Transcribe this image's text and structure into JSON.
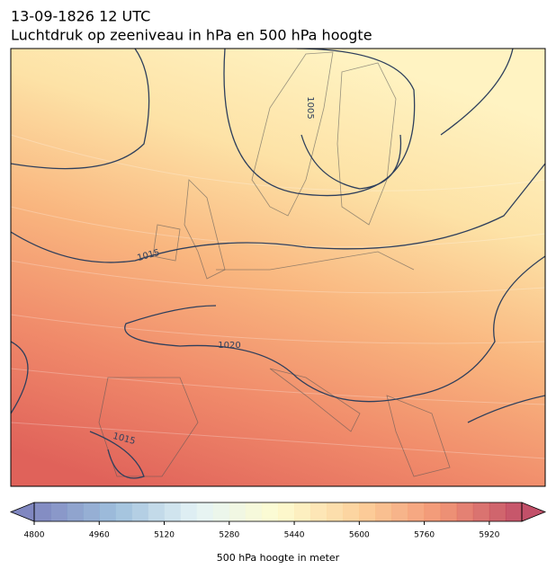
{
  "header": {
    "title_line1": "13-09-1826 12 UTC",
    "title_line2": "Luchtdruk op zeeniveau in hPa en 500 hPa hoogte"
  },
  "map": {
    "isobar_labels": [
      1005,
      1015,
      1020,
      1015
    ]
  },
  "colorbar": {
    "label": "500 hPa hoogte in meter",
    "range": [
      4800,
      6000
    ],
    "step": 40,
    "ticks": [
      4800,
      4960,
      5120,
      5280,
      5440,
      5600,
      5760,
      5920
    ],
    "colors": [
      "#6a72b5",
      "#8fb5d6",
      "#e0f1f4",
      "#fdfbc8",
      "#fcc98a",
      "#f0845f",
      "#b7314f"
    ]
  }
}
